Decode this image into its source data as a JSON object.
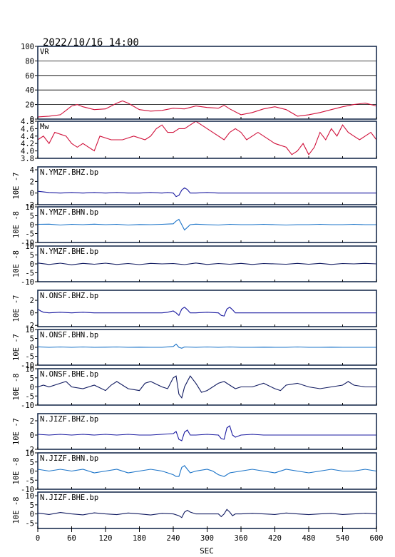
{
  "header": {
    "datetime": "2022/10/16 14:00"
  },
  "x_axis": {
    "label": "SEC",
    "ticks": [
      "0",
      "60",
      "120",
      "180",
      "240",
      "300",
      "360",
      "420",
      "480",
      "540",
      "600"
    ]
  },
  "chart_data": [
    {
      "type": "line",
      "panel_label": "VR",
      "ylim": [
        0,
        100
      ],
      "yticks": [
        "0",
        "20",
        "40",
        "60",
        "80",
        "100"
      ],
      "grid": true,
      "color": "#d0103a",
      "x": [
        0,
        20,
        40,
        50,
        60,
        70,
        80,
        90,
        100,
        120,
        140,
        150,
        160,
        180,
        200,
        220,
        240,
        260,
        280,
        300,
        320,
        330,
        340,
        360,
        380,
        400,
        420,
        440,
        460,
        480,
        500,
        520,
        540,
        560,
        580,
        600
      ],
      "values": [
        3,
        4,
        6,
        12,
        18,
        20,
        17,
        15,
        13,
        14,
        22,
        25,
        22,
        13,
        11,
        12,
        15,
        14,
        18,
        16,
        15,
        19,
        14,
        6,
        9,
        14,
        17,
        13,
        4,
        6,
        9,
        13,
        17,
        20,
        22,
        18
      ]
    },
    {
      "type": "line",
      "panel_label": "Mw",
      "ylim": [
        3.8,
        4.8
      ],
      "yticks": [
        "3.8",
        "4.0",
        "4.2",
        "4.4",
        "4.6",
        "4.8"
      ],
      "color": "#d0103a",
      "x": [
        0,
        10,
        20,
        30,
        50,
        60,
        70,
        80,
        90,
        100,
        110,
        130,
        150,
        170,
        190,
        200,
        210,
        220,
        230,
        240,
        250,
        260,
        270,
        280,
        290,
        310,
        330,
        340,
        350,
        360,
        370,
        380,
        390,
        400,
        420,
        440,
        450,
        460,
        470,
        480,
        490,
        500,
        510,
        520,
        530,
        540,
        550,
        560,
        570,
        580,
        590,
        600
      ],
      "values": [
        4.3,
        4.4,
        4.2,
        4.5,
        4.4,
        4.2,
        4.1,
        4.2,
        4.1,
        4.0,
        4.4,
        4.3,
        4.3,
        4.4,
        4.3,
        4.4,
        4.6,
        4.7,
        4.5,
        4.5,
        4.6,
        4.6,
        4.7,
        4.8,
        4.7,
        4.5,
        4.3,
        4.5,
        4.6,
        4.5,
        4.3,
        4.4,
        4.5,
        4.4,
        4.2,
        4.1,
        3.9,
        4.0,
        4.2,
        3.9,
        4.1,
        4.5,
        4.3,
        4.6,
        4.4,
        4.7,
        4.5,
        4.4,
        4.3,
        4.4,
        4.5,
        4.3
      ]
    },
    {
      "type": "line",
      "panel_label": "N.YMZF.BHZ.bp",
      "ylabel": "10E -7",
      "ylim": [
        -2,
        4.5
      ],
      "yticks": [
        "-2",
        "0",
        "2",
        "4"
      ],
      "color": "#1a1aa0",
      "x": [
        0,
        10,
        20,
        40,
        60,
        80,
        100,
        120,
        140,
        160,
        180,
        200,
        220,
        230,
        240,
        245,
        250,
        255,
        260,
        265,
        270,
        280,
        300,
        320,
        340,
        360,
        380,
        400,
        420,
        440,
        460,
        480,
        500,
        520,
        540,
        560,
        580,
        600
      ],
      "values": [
        0.3,
        0.2,
        0.1,
        0,
        0.1,
        0,
        0.1,
        0,
        0.1,
        0,
        0,
        0.1,
        0,
        0.1,
        0,
        -0.6,
        -0.4,
        0.5,
        0.9,
        0.6,
        0,
        0,
        0.1,
        0,
        0,
        0,
        0,
        0,
        0,
        0,
        0,
        0,
        0,
        0,
        0,
        0,
        0,
        0
      ]
    },
    {
      "type": "line",
      "panel_label": "N.YMZF.BHN.bp",
      "ylabel": "10E -8",
      "ylim": [
        -10,
        10
      ],
      "yticks": [
        "-10",
        "-5",
        "0",
        "5",
        "10"
      ],
      "color": "#1a73c8",
      "x": [
        0,
        20,
        40,
        60,
        80,
        100,
        120,
        140,
        160,
        180,
        200,
        220,
        240,
        245,
        250,
        255,
        260,
        265,
        270,
        280,
        300,
        320,
        340,
        360,
        380,
        400,
        420,
        440,
        460,
        480,
        500,
        520,
        540,
        560,
        580,
        600
      ],
      "values": [
        0.2,
        0.3,
        -0.2,
        0.2,
        0,
        0.3,
        0,
        0.2,
        -0.2,
        0.1,
        0,
        0.2,
        0.5,
        2,
        3,
        0,
        -3,
        -1.5,
        0,
        0.3,
        0,
        -0.2,
        0.2,
        0,
        0,
        0.2,
        0,
        -0.2,
        0,
        0,
        0.2,
        0,
        0,
        0.2,
        0,
        0
      ]
    },
    {
      "type": "line",
      "panel_label": "N.YMZF.BHE.bp",
      "ylabel": "10E -8",
      "ylim": [
        -10,
        10
      ],
      "yticks": [
        "-10",
        "-5",
        "0",
        "5",
        "10"
      ],
      "color": "#101a60",
      "x": [
        0,
        20,
        40,
        60,
        80,
        100,
        120,
        140,
        160,
        180,
        200,
        220,
        240,
        260,
        280,
        300,
        320,
        340,
        360,
        380,
        400,
        420,
        440,
        460,
        480,
        500,
        520,
        540,
        560,
        580,
        600
      ],
      "values": [
        0.5,
        -0.3,
        0.4,
        -0.5,
        0.3,
        -0.2,
        0.4,
        -0.3,
        0.2,
        -0.4,
        0.3,
        0,
        0.2,
        -0.4,
        0.5,
        -0.3,
        0.2,
        -0.2,
        0.3,
        -0.3,
        0.2,
        0,
        -0.2,
        0.3,
        -0.2,
        0.3,
        -0.3,
        0.2,
        0,
        0.3,
        0
      ]
    },
    {
      "type": "line",
      "panel_label": "N.ONSF.BHZ.bp",
      "ylabel": "10E -7",
      "ylim": [
        -2.2,
        3.6
      ],
      "yticks": [
        "-2",
        "0",
        "2"
      ],
      "color": "#1a1aa0",
      "x": [
        0,
        5,
        10,
        20,
        40,
        60,
        80,
        100,
        120,
        140,
        160,
        180,
        200,
        220,
        230,
        240,
        245,
        250,
        255,
        260,
        265,
        270,
        280,
        300,
        320,
        325,
        330,
        335,
        340,
        345,
        350,
        360,
        380,
        400,
        420,
        440,
        460,
        480,
        500,
        520,
        540,
        560,
        580,
        600
      ],
      "values": [
        0.6,
        0.3,
        0.1,
        0,
        0.1,
        0,
        0.1,
        0,
        0,
        0,
        0,
        0,
        0,
        0,
        0.1,
        0.3,
        0,
        -0.4,
        0.6,
        0.9,
        0.5,
        0,
        0,
        0.1,
        0,
        -0.4,
        -0.5,
        0.6,
        0.9,
        0.5,
        0,
        0,
        0,
        0,
        0,
        0,
        0,
        0,
        0,
        0,
        0,
        0,
        0,
        0
      ]
    },
    {
      "type": "line",
      "panel_label": "N.ONSF.BHN.bp",
      "ylabel": "10E -7",
      "ylim": [
        -10,
        10
      ],
      "yticks": [
        "-10",
        "-5",
        "0",
        "5",
        "10"
      ],
      "color": "#1a73c8",
      "x": [
        0,
        20,
        40,
        60,
        80,
        100,
        120,
        140,
        160,
        180,
        200,
        220,
        240,
        245,
        250,
        255,
        260,
        280,
        300,
        320,
        340,
        360,
        380,
        400,
        420,
        440,
        460,
        480,
        500,
        520,
        540,
        560,
        580,
        600
      ],
      "values": [
        0.3,
        0,
        0.2,
        0,
        0.2,
        0,
        0.1,
        0.2,
        0,
        0.1,
        0,
        0,
        0.5,
        1.8,
        0,
        -0.5,
        0.2,
        0,
        0.2,
        0,
        0.2,
        0,
        0,
        0.1,
        0,
        0,
        0.2,
        0,
        0,
        0.1,
        0,
        0,
        0,
        0
      ]
    },
    {
      "type": "line",
      "panel_label": "N.ONSF.BHE.bp",
      "ylabel": "10E -8",
      "ylim": [
        -10,
        10
      ],
      "yticks": [
        "-10",
        "-5",
        "0",
        "5",
        "10"
      ],
      "color": "#101a60",
      "x": [
        0,
        10,
        20,
        40,
        50,
        60,
        80,
        100,
        120,
        130,
        140,
        150,
        160,
        180,
        190,
        200,
        220,
        230,
        240,
        245,
        250,
        255,
        260,
        270,
        280,
        290,
        300,
        320,
        330,
        340,
        350,
        360,
        380,
        400,
        420,
        430,
        440,
        460,
        480,
        500,
        520,
        540,
        550,
        560,
        580,
        600
      ],
      "values": [
        0,
        1,
        0,
        2,
        3,
        0,
        -1,
        1,
        -2,
        1,
        3,
        1,
        -1,
        -2,
        2,
        3,
        0,
        -1,
        5,
        6,
        -4,
        -6,
        0,
        6,
        2,
        -3,
        -2,
        2,
        3,
        1,
        -1,
        0,
        0,
        2,
        -1,
        -2,
        1,
        2,
        0,
        -1,
        0,
        1,
        3,
        1,
        0,
        0
      ]
    },
    {
      "type": "line",
      "panel_label": "N.JIZF.BHZ.bp",
      "ylabel": "10E -7",
      "ylim": [
        -2,
        3
      ],
      "yticks": [
        "-2",
        "0",
        "2"
      ],
      "color": "#1a1aa0",
      "x": [
        0,
        20,
        40,
        60,
        80,
        100,
        120,
        140,
        160,
        180,
        200,
        220,
        240,
        245,
        250,
        255,
        260,
        265,
        270,
        280,
        300,
        320,
        325,
        330,
        335,
        340,
        345,
        350,
        360,
        380,
        400,
        420,
        440,
        460,
        480,
        500,
        520,
        540,
        560,
        580,
        600
      ],
      "values": [
        0.1,
        0,
        0.1,
        0,
        0.1,
        0,
        0.1,
        0,
        0.1,
        0,
        0,
        0.1,
        0.2,
        0.5,
        -0.6,
        -0.8,
        0.4,
        0.7,
        0,
        0,
        0.1,
        0,
        -0.5,
        -0.6,
        1,
        1.3,
        0,
        -0.3,
        0,
        0.1,
        0,
        0,
        0,
        0,
        0,
        0,
        0,
        0,
        0,
        0,
        0
      ]
    },
    {
      "type": "line",
      "panel_label": "N.JIZF.BHN.bp",
      "ylabel": "10E -8",
      "ylim": [
        -10,
        10
      ],
      "yticks": [
        "-10",
        "-5",
        "0",
        "5",
        "10"
      ],
      "color": "#1a73c8",
      "x": [
        0,
        20,
        40,
        60,
        80,
        100,
        120,
        140,
        160,
        180,
        200,
        220,
        230,
        240,
        245,
        250,
        255,
        260,
        265,
        270,
        280,
        300,
        310,
        320,
        330,
        340,
        360,
        380,
        400,
        420,
        440,
        460,
        480,
        500,
        520,
        540,
        560,
        580,
        600
      ],
      "values": [
        1,
        0,
        1,
        0,
        1,
        -1,
        0,
        1,
        -1,
        0,
        1,
        0,
        -1,
        -2,
        -3,
        -3,
        2,
        3,
        1,
        -1,
        0,
        1,
        0,
        -2,
        -3,
        -1,
        0,
        1,
        0,
        -1,
        1,
        0,
        -1,
        0,
        1,
        0,
        0,
        1,
        0
      ]
    },
    {
      "type": "line",
      "panel_label": "N.JIZF.BHE.bp",
      "ylabel": "10E -8",
      "ylim": [
        -8,
        12
      ],
      "yticks": [
        "-5",
        "0",
        "5",
        "10"
      ],
      "color": "#101a60",
      "x": [
        0,
        20,
        40,
        60,
        80,
        100,
        120,
        140,
        160,
        180,
        200,
        220,
        240,
        250,
        255,
        260,
        265,
        270,
        280,
        300,
        320,
        325,
        330,
        335,
        340,
        345,
        350,
        360,
        380,
        400,
        420,
        440,
        460,
        480,
        500,
        520,
        540,
        560,
        580,
        600
      ],
      "values": [
        0.5,
        -0.3,
        0.8,
        0,
        -0.5,
        0.6,
        0,
        -0.4,
        0.5,
        0,
        -0.6,
        0.3,
        0,
        -1,
        -2,
        1,
        2,
        1,
        0,
        0,
        0,
        -1.5,
        0,
        2.5,
        1,
        -1,
        0,
        0,
        0.3,
        0,
        -0.3,
        0.5,
        0,
        -0.4,
        0,
        0.3,
        -0.3,
        0,
        0.4,
        0
      ]
    }
  ]
}
